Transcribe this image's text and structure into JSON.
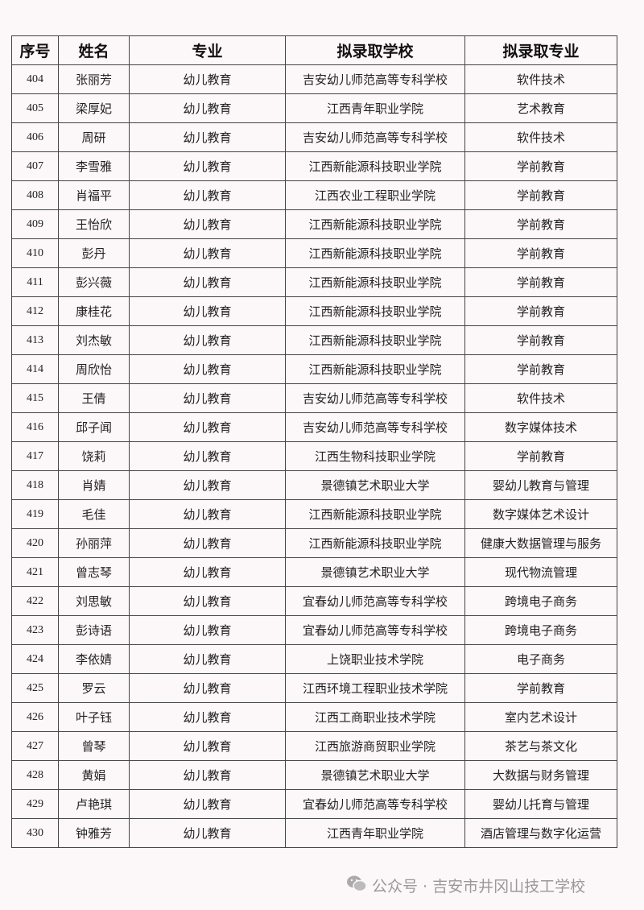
{
  "table": {
    "headers": [
      "序号",
      "姓名",
      "专业",
      "拟录取学校",
      "拟录取专业"
    ],
    "rows": [
      [
        "404",
        "张丽芳",
        "幼儿教育",
        "吉安幼儿师范高等专科学校",
        "软件技术"
      ],
      [
        "405",
        "梁厚妃",
        "幼儿教育",
        "江西青年职业学院",
        "艺术教育"
      ],
      [
        "406",
        "周研",
        "幼儿教育",
        "吉安幼儿师范高等专科学校",
        "软件技术"
      ],
      [
        "407",
        "李雪雅",
        "幼儿教育",
        "江西新能源科技职业学院",
        "学前教育"
      ],
      [
        "408",
        "肖福平",
        "幼儿教育",
        "江西农业工程职业学院",
        "学前教育"
      ],
      [
        "409",
        "王怡欣",
        "幼儿教育",
        "江西新能源科技职业学院",
        "学前教育"
      ],
      [
        "410",
        "彭丹",
        "幼儿教育",
        "江西新能源科技职业学院",
        "学前教育"
      ],
      [
        "411",
        "彭兴薇",
        "幼儿教育",
        "江西新能源科技职业学院",
        "学前教育"
      ],
      [
        "412",
        "康桂花",
        "幼儿教育",
        "江西新能源科技职业学院",
        "学前教育"
      ],
      [
        "413",
        "刘杰敏",
        "幼儿教育",
        "江西新能源科技职业学院",
        "学前教育"
      ],
      [
        "414",
        "周欣怡",
        "幼儿教育",
        "江西新能源科技职业学院",
        "学前教育"
      ],
      [
        "415",
        "王倩",
        "幼儿教育",
        "吉安幼儿师范高等专科学校",
        "软件技术"
      ],
      [
        "416",
        "邱子闻",
        "幼儿教育",
        "吉安幼儿师范高等专科学校",
        "数字媒体技术"
      ],
      [
        "417",
        "饶莉",
        "幼儿教育",
        "江西生物科技职业学院",
        "学前教育"
      ],
      [
        "418",
        "肖婧",
        "幼儿教育",
        "景德镇艺术职业大学",
        "婴幼儿教育与管理"
      ],
      [
        "419",
        "毛佳",
        "幼儿教育",
        "江西新能源科技职业学院",
        "数字媒体艺术设计"
      ],
      [
        "420",
        "孙丽萍",
        "幼儿教育",
        "江西新能源科技职业学院",
        "健康大数据管理与服务"
      ],
      [
        "421",
        "曾志琴",
        "幼儿教育",
        "景德镇艺术职业大学",
        "现代物流管理"
      ],
      [
        "422",
        "刘思敏",
        "幼儿教育",
        "宜春幼儿师范高等专科学校",
        "跨境电子商务"
      ],
      [
        "423",
        "彭诗语",
        "幼儿教育",
        "宜春幼儿师范高等专科学校",
        "跨境电子商务"
      ],
      [
        "424",
        "李依婧",
        "幼儿教育",
        "上饶职业技术学院",
        "电子商务"
      ],
      [
        "425",
        "罗云",
        "幼儿教育",
        "江西环境工程职业技术学院",
        "学前教育"
      ],
      [
        "426",
        "叶子钰",
        "幼儿教育",
        "江西工商职业技术学院",
        "室内艺术设计"
      ],
      [
        "427",
        "曾琴",
        "幼儿教育",
        "江西旅游商贸职业学院",
        "茶艺与茶文化"
      ],
      [
        "428",
        "黄娟",
        "幼儿教育",
        "景德镇艺术职业大学",
        "大数据与财务管理"
      ],
      [
        "429",
        "卢艳琪",
        "幼儿教育",
        "宜春幼儿师范高等专科学校",
        "婴幼儿托育与管理"
      ],
      [
        "430",
        "钟雅芳",
        "幼儿教育",
        "江西青年职业学院",
        "酒店管理与数字化运营"
      ]
    ]
  },
  "watermark": {
    "icon": "wechat-icon",
    "text": "公众号 · 吉安市井冈山技工学校"
  }
}
